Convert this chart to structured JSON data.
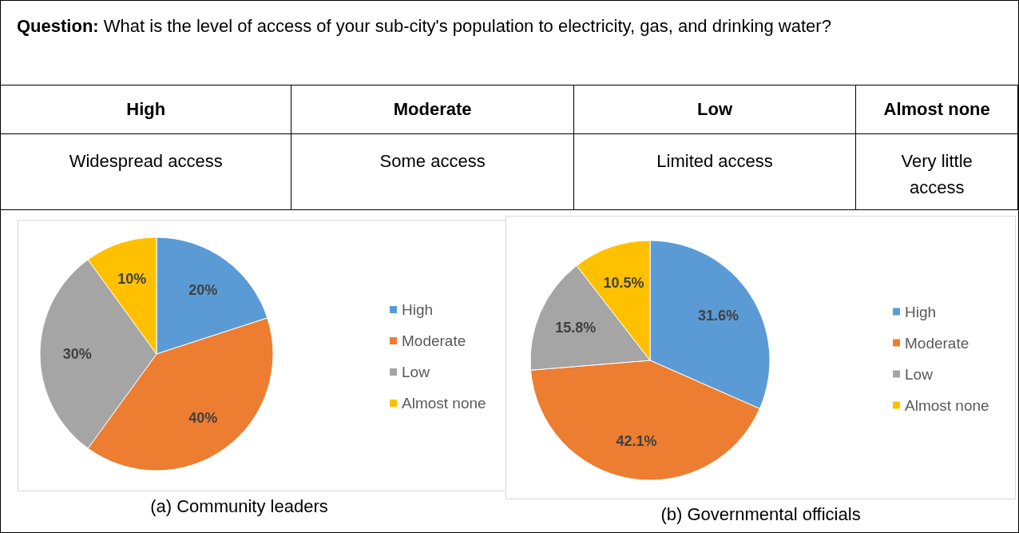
{
  "chart_data": [
    {
      "type": "other",
      "title": "Question: What is the level of access of your sub-city's population to electricity, gas, and drinking water?",
      "categories": [
        "High",
        "Moderate",
        "Low",
        "Almost none"
      ],
      "annotations": [
        "Widespread access",
        "Some access",
        "Limited access",
        "Very little access"
      ]
    },
    {
      "type": "pie",
      "title": "(a) Community leaders",
      "categories": [
        "High",
        "Moderate",
        "Low",
        "Almost none"
      ],
      "values": [
        20,
        40,
        30,
        10
      ],
      "value_labels": [
        "20%",
        "40%",
        "30%",
        "10%"
      ],
      "colors": [
        "#5b9bd5",
        "#ed7d31",
        "#a5a5a5",
        "#ffc000"
      ],
      "legend": "right"
    },
    {
      "type": "pie",
      "title": "(b) Governmental officials",
      "categories": [
        "High",
        "Moderate",
        "Low",
        "Almost none"
      ],
      "values": [
        31.6,
        42.1,
        15.8,
        10.5
      ],
      "value_labels": [
        "31.6%",
        "42.1%",
        "15.8%",
        "10.5%"
      ],
      "colors": [
        "#5b9bd5",
        "#ed7d31",
        "#a5a5a5",
        "#ffc000"
      ],
      "legend": "right"
    }
  ]
}
